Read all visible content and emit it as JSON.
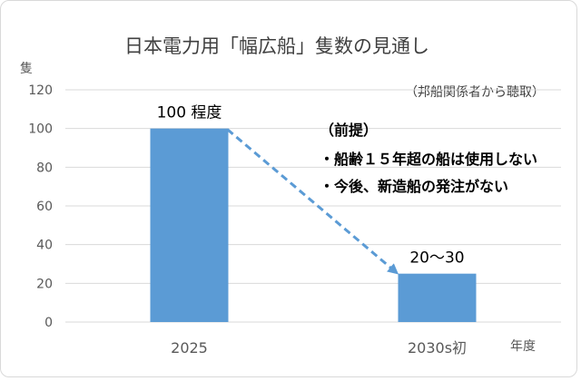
{
  "chart_data": {
    "type": "bar",
    "title": "日本電力用「幅広船」隻数の見通し",
    "ylabel": "隻",
    "xlabel": "年度",
    "ylim": [
      0,
      120
    ],
    "yticks": [
      0,
      20,
      40,
      60,
      80,
      100,
      120
    ],
    "grid": true,
    "categories": [
      "2025",
      "2030s初"
    ],
    "values": [
      100,
      25
    ],
    "data_labels": [
      "100 程度",
      "20〜30"
    ],
    "bar_color": "#5b9bd5",
    "trend_arrow": {
      "from": "2025",
      "to": "2030s初",
      "style": "dashed",
      "color": "#5b9bd5"
    },
    "source": "（邦船関係者から聴取）",
    "annotation": {
      "heading": "（前提）",
      "lines": [
        "・船齢１５年超の船は使用しない",
        "・今後、新造船の発注がない"
      ]
    }
  }
}
